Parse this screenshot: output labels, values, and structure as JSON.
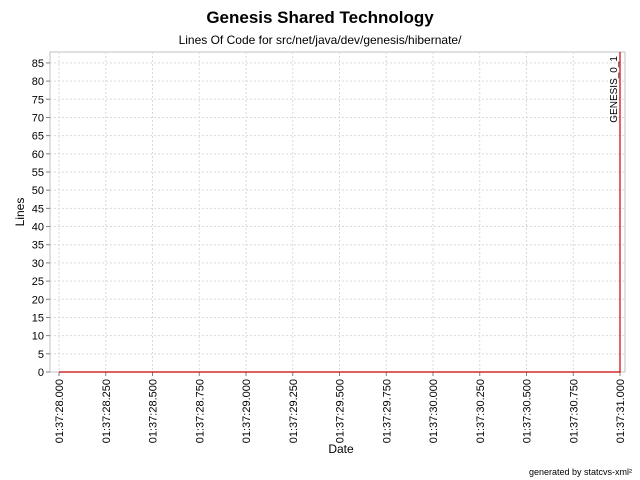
{
  "chart_data": {
    "type": "line",
    "title": "Genesis Shared Technology",
    "subtitle": "Lines Of Code for src/net/java/dev/genesis/hibernate/",
    "xlabel": "Date",
    "ylabel": "Lines",
    "x_ticks": [
      "01:37:28.000",
      "01:37:28.250",
      "01:37:28.500",
      "01:37:28.750",
      "01:37:29.000",
      "01:37:29.250",
      "01:37:29.500",
      "01:37:29.750",
      "01:37:30.000",
      "01:37:30.250",
      "01:37:30.500",
      "01:37:30.750",
      "01:37:31.000"
    ],
    "xlim": [
      "01:37:28.000",
      "01:37:31.000"
    ],
    "y_ticks": [
      0,
      5,
      10,
      15,
      20,
      25,
      30,
      35,
      40,
      45,
      50,
      55,
      60,
      65,
      70,
      75,
      80,
      85
    ],
    "ylim": [
      0,
      88
    ],
    "grid": true,
    "series": [
      {
        "color": "#cc0000",
        "points": [
          {
            "x": "01:37:28.000",
            "y": 0
          },
          {
            "x": "01:37:31.000",
            "y": 0
          },
          {
            "x": "01:37:31.000",
            "y": 88
          }
        ]
      }
    ],
    "annotations": [
      {
        "text": "GENESIS_0_1",
        "x": "01:37:31.000"
      }
    ]
  },
  "footer": {
    "credit": "generated by statcvs-xml²"
  },
  "colors": {
    "series": "#cc0000",
    "grid": "#d9d9d9",
    "axis": "#808080",
    "text": "#000000"
  }
}
